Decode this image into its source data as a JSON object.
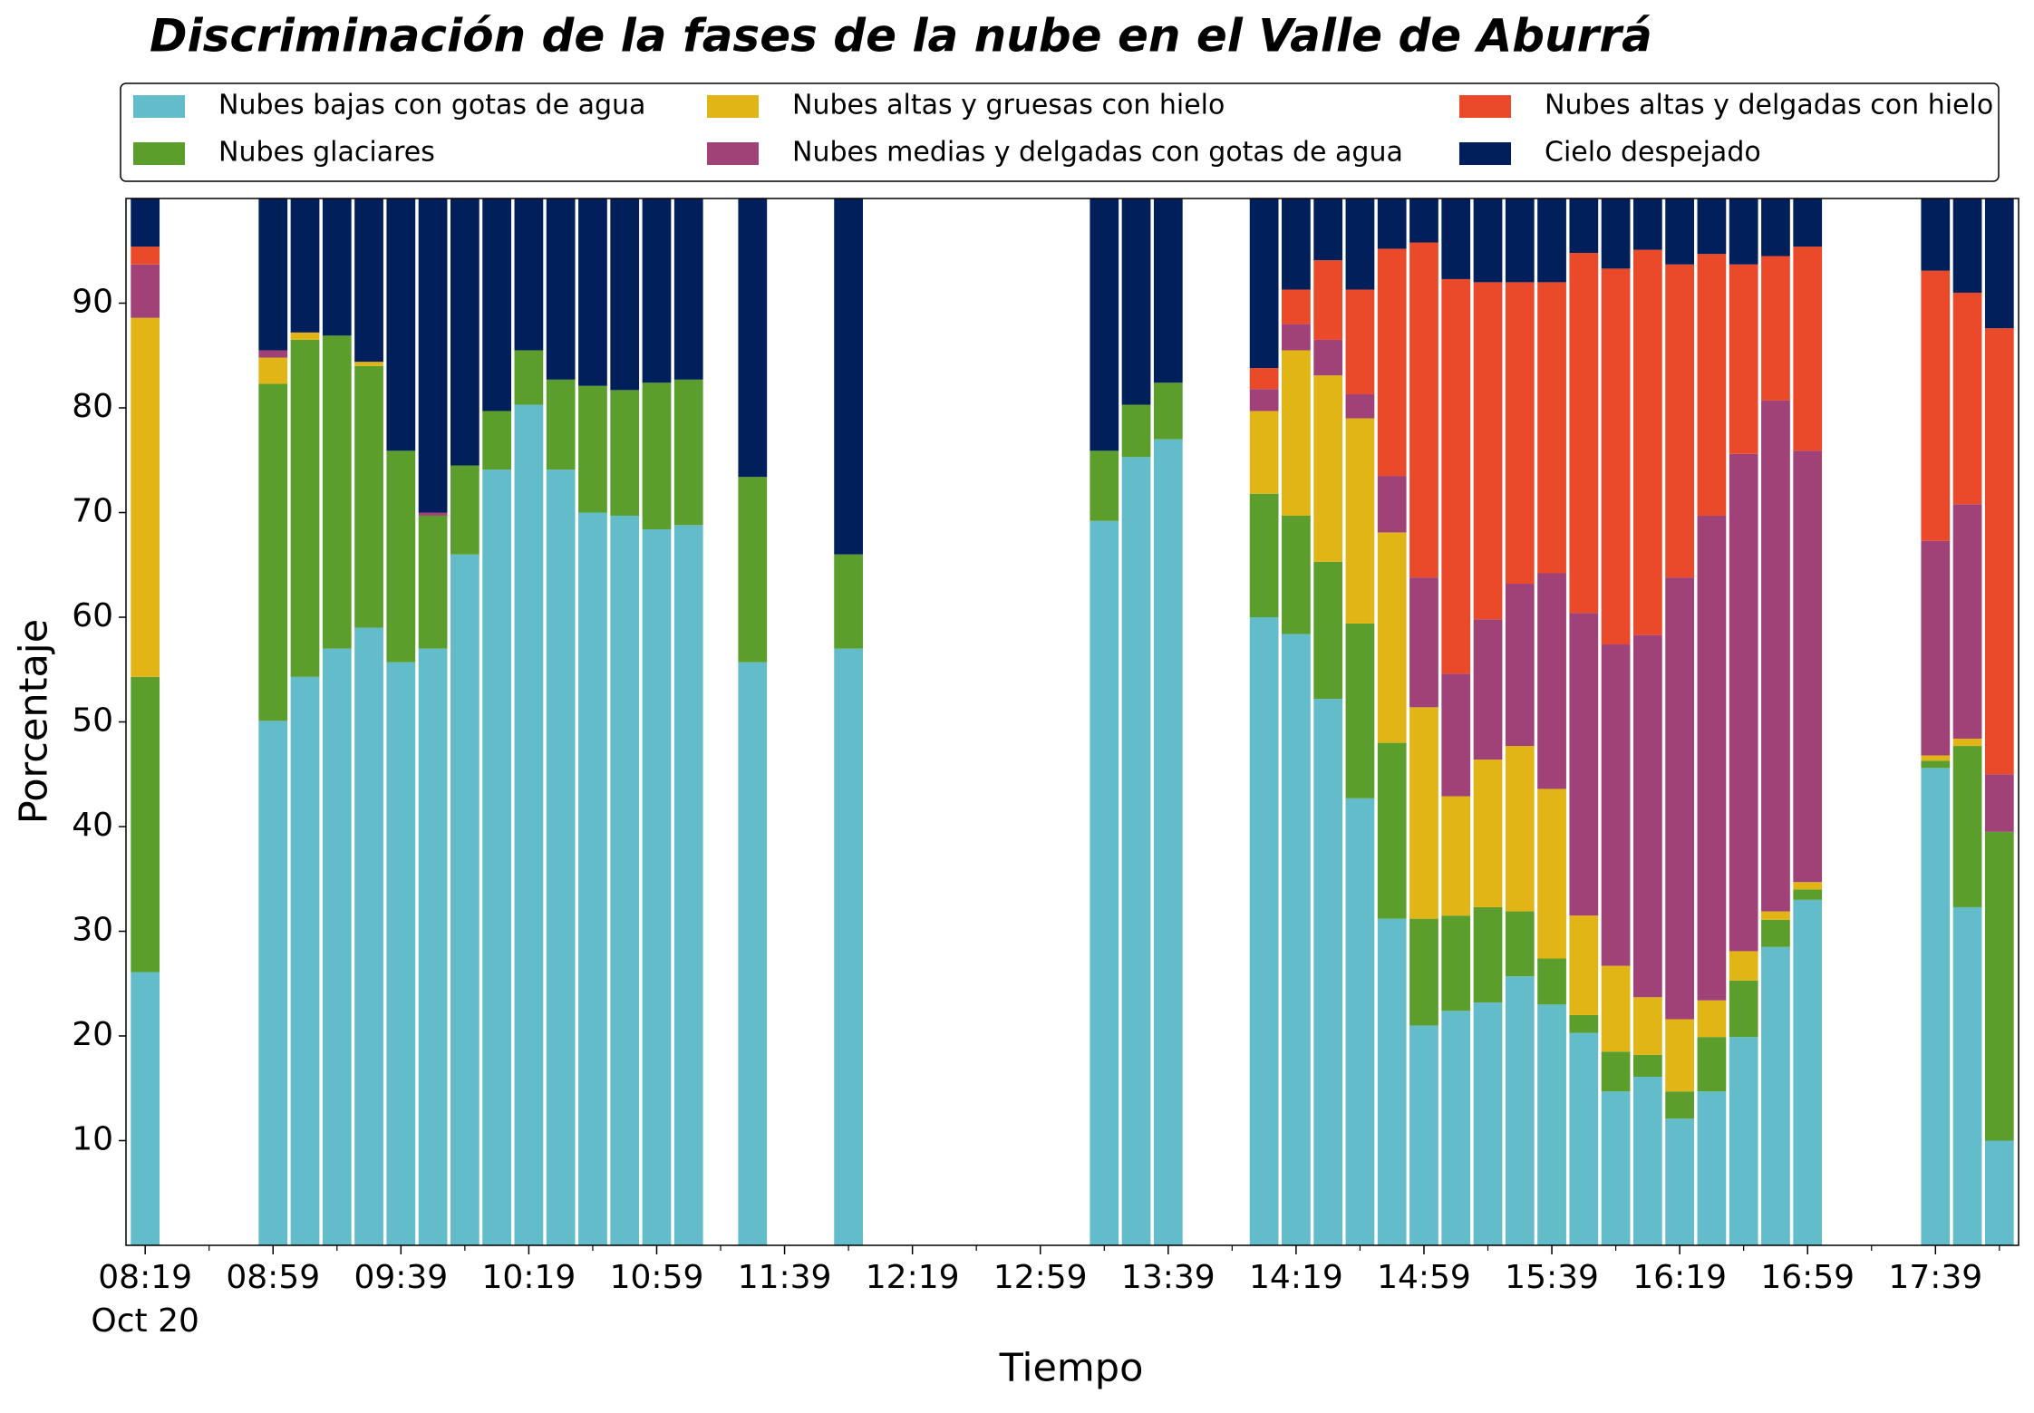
{
  "chart_data": {
    "type": "stacked_bar",
    "title": "Discriminación de la fases de la nube en el Valle de Aburrá",
    "xlabel": "Tiempo",
    "ylabel": "Porcentaje",
    "x_date_label": "Oct 20",
    "x": [
      "08:19",
      "08:59",
      "09:09",
      "09:19",
      "09:29",
      "09:39",
      "09:49",
      "09:59",
      "10:09",
      "10:19",
      "10:29",
      "10:39",
      "10:49",
      "10:59",
      "11:09",
      "11:29",
      "11:59",
      "13:19",
      "13:29",
      "13:39",
      "14:09",
      "14:19",
      "14:29",
      "14:39",
      "14:49",
      "14:59",
      "15:09",
      "15:19",
      "15:29",
      "15:39",
      "15:49",
      "15:59",
      "16:09",
      "16:19",
      "16:29",
      "16:39",
      "16:49",
      "16:59",
      "17:39",
      "17:49",
      "17:59"
    ],
    "bar_minutes": 10,
    "xlim": [
      "08:13",
      "18:05"
    ],
    "xticks": [
      "08:19",
      "08:59",
      "09:39",
      "10:19",
      "10:59",
      "11:39",
      "12:19",
      "12:59",
      "13:39",
      "14:19",
      "14:59",
      "15:39",
      "16:19",
      "16:59",
      "17:39"
    ],
    "xticks_minor": [
      "08:39",
      "09:19",
      "09:59",
      "10:39",
      "11:19",
      "11:59",
      "12:39",
      "13:19",
      "13:59",
      "14:39",
      "15:19",
      "15:59",
      "16:39",
      "17:19",
      "17:59"
    ],
    "ylim": [
      0,
      100
    ],
    "yticks": [
      10,
      20,
      30,
      40,
      50,
      60,
      70,
      80,
      90
    ],
    "grid": false,
    "series": [
      {
        "name": "Nubes bajas con gotas de agua",
        "color": "#63bcc9",
        "values": [
          26.1,
          50.1,
          54.3,
          57.0,
          59.0,
          55.7,
          57.0,
          66.0,
          74.1,
          80.3,
          74.1,
          70.0,
          69.7,
          68.4,
          68.8,
          55.7,
          57.0,
          69.2,
          75.3,
          77.0,
          60.0,
          58.4,
          52.2,
          42.7,
          31.2,
          21.0,
          22.4,
          23.2,
          25.7,
          23.0,
          20.3,
          14.7,
          16.1,
          12.1,
          14.7,
          19.9,
          28.5,
          33.0,
          45.6,
          32.3,
          10.0
        ]
      },
      {
        "name": "Nubes glaciares",
        "color": "#5c9e2c",
        "values": [
          28.2,
          32.2,
          32.2,
          29.9,
          25.0,
          20.2,
          12.7,
          8.5,
          5.6,
          5.2,
          8.6,
          12.1,
          12.0,
          14.0,
          13.9,
          17.7,
          9.0,
          6.7,
          5.0,
          5.4,
          11.8,
          11.3,
          13.1,
          16.7,
          16.8,
          10.2,
          9.1,
          9.1,
          6.2,
          4.4,
          1.7,
          3.8,
          2.1,
          2.6,
          5.2,
          5.4,
          2.6,
          1.0,
          0.7,
          15.4,
          29.5
        ]
      },
      {
        "name": "Nubes altas y gruesas con hielo",
        "color": "#e1b516",
        "values": [
          34.3,
          2.5,
          0.7,
          0,
          0.4,
          0,
          0,
          0,
          0,
          0,
          0,
          0,
          0,
          0,
          0,
          0,
          0,
          0,
          0,
          0,
          7.9,
          15.8,
          17.8,
          19.6,
          20.1,
          20.2,
          11.4,
          14.1,
          15.8,
          16.2,
          9.5,
          8.2,
          5.5,
          6.9,
          3.5,
          2.8,
          0.8,
          0.7,
          0.5,
          0.7,
          0
        ]
      },
      {
        "name": "Nubes medias y delgadas con gotas de agua",
        "color": "#a04178",
        "values": [
          5.1,
          0.7,
          0,
          0,
          0,
          0,
          0.3,
          0,
          0,
          0,
          0,
          0,
          0,
          0,
          0,
          0,
          0,
          0,
          0,
          0,
          2.1,
          2.5,
          3.4,
          2.3,
          5.4,
          12.4,
          11.7,
          13.4,
          15.5,
          20.6,
          28.9,
          30.7,
          34.6,
          42.2,
          46.3,
          47.5,
          48.8,
          41.2,
          20.5,
          22.4,
          5.5
        ]
      },
      {
        "name": "Nubes altas y delgadas con hielo",
        "color": "#ea4a29",
        "values": [
          1.7,
          0,
          0,
          0,
          0,
          0,
          0,
          0,
          0,
          0,
          0,
          0,
          0,
          0,
          0,
          0,
          0,
          0,
          0,
          0,
          2.0,
          3.3,
          7.6,
          10.0,
          21.7,
          32.0,
          37.7,
          32.2,
          28.8,
          27.8,
          34.4,
          35.9,
          36.8,
          29.9,
          25.0,
          18.1,
          13.8,
          19.5,
          25.8,
          20.2,
          42.6
        ]
      },
      {
        "name": "Cielo despejado",
        "color": "#011f5b",
        "values": [
          4.6,
          14.5,
          12.8,
          13.1,
          15.6,
          24.1,
          30.0,
          25.5,
          20.3,
          14.5,
          17.3,
          17.9,
          18.3,
          17.6,
          17.3,
          26.6,
          34.0,
          24.1,
          19.7,
          17.6,
          16.2,
          8.7,
          5.9,
          8.7,
          4.8,
          4.2,
          7.7,
          8.0,
          8.0,
          8.0,
          5.2,
          6.7,
          4.9,
          6.3,
          5.3,
          6.3,
          5.5,
          4.6,
          6.9,
          9.0,
          12.4
        ]
      }
    ]
  }
}
